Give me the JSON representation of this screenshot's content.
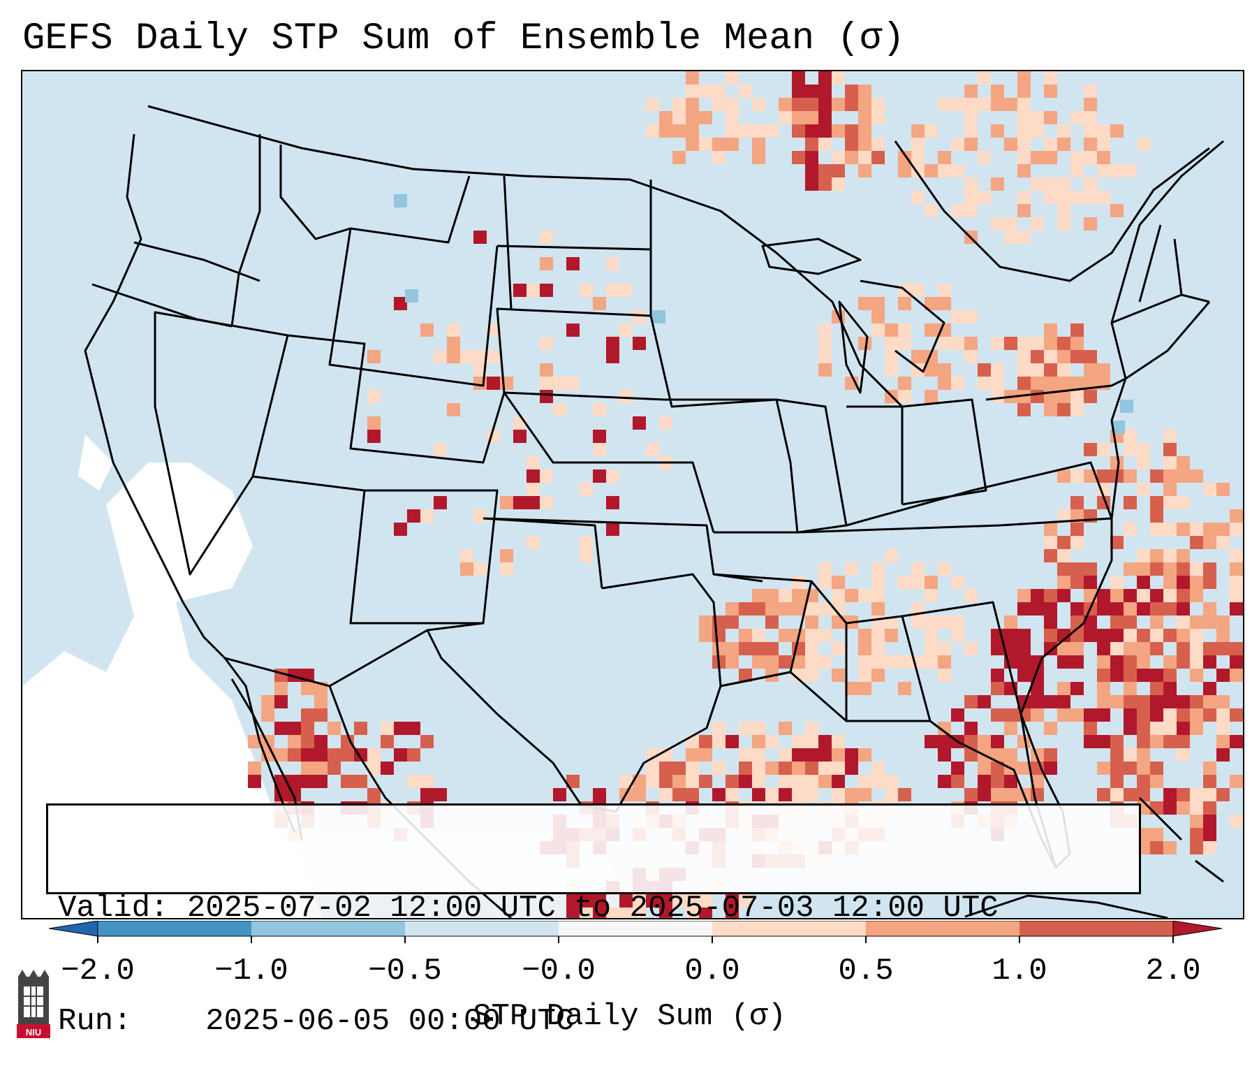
{
  "figure": {
    "title": "GEFS Daily STP Sum of Ensemble Mean (σ)"
  },
  "info_box": {
    "valid_label": "Valid:",
    "valid_value": "2025-07-02 12:00 UTC to 2025-07-03 12:00 UTC",
    "run_label": "Run:",
    "run_value": "2025-06-05 00:00 UTC"
  },
  "colorbar": {
    "label": "STP Daily Sum (σ)",
    "tick_labels": [
      "−2.0",
      "−1.0",
      "−0.5",
      "−0.0",
      "0.0",
      "0.5",
      "1.0",
      "2.0"
    ],
    "bins": [
      {
        "range": "<-2.0",
        "color": "#2166ac"
      },
      {
        "range": "-2.0 to -1.0",
        "color": "#4393c3"
      },
      {
        "range": "-1.0 to -0.5",
        "color": "#92c5de"
      },
      {
        "range": "-0.5 to -0.0",
        "color": "#d1e5f0"
      },
      {
        "range": "-0.0 to 0.0",
        "color": "#f7f7f7"
      },
      {
        "range": "0.0 to 0.5",
        "color": "#fddbc7"
      },
      {
        "range": "0.5 to 1.0",
        "color": "#f4a582"
      },
      {
        "range": "1.0 to 2.0",
        "color": "#d6604d"
      },
      {
        "range": ">2.0",
        "color": "#b2182b"
      }
    ]
  },
  "logo": {
    "text": "NIU",
    "icon": "niu-building-icon"
  },
  "map": {
    "region": "CONUS",
    "background_color": "#d1e5f0",
    "land_no_data_color": "#ffffff",
    "border_color": "#000000"
  }
}
